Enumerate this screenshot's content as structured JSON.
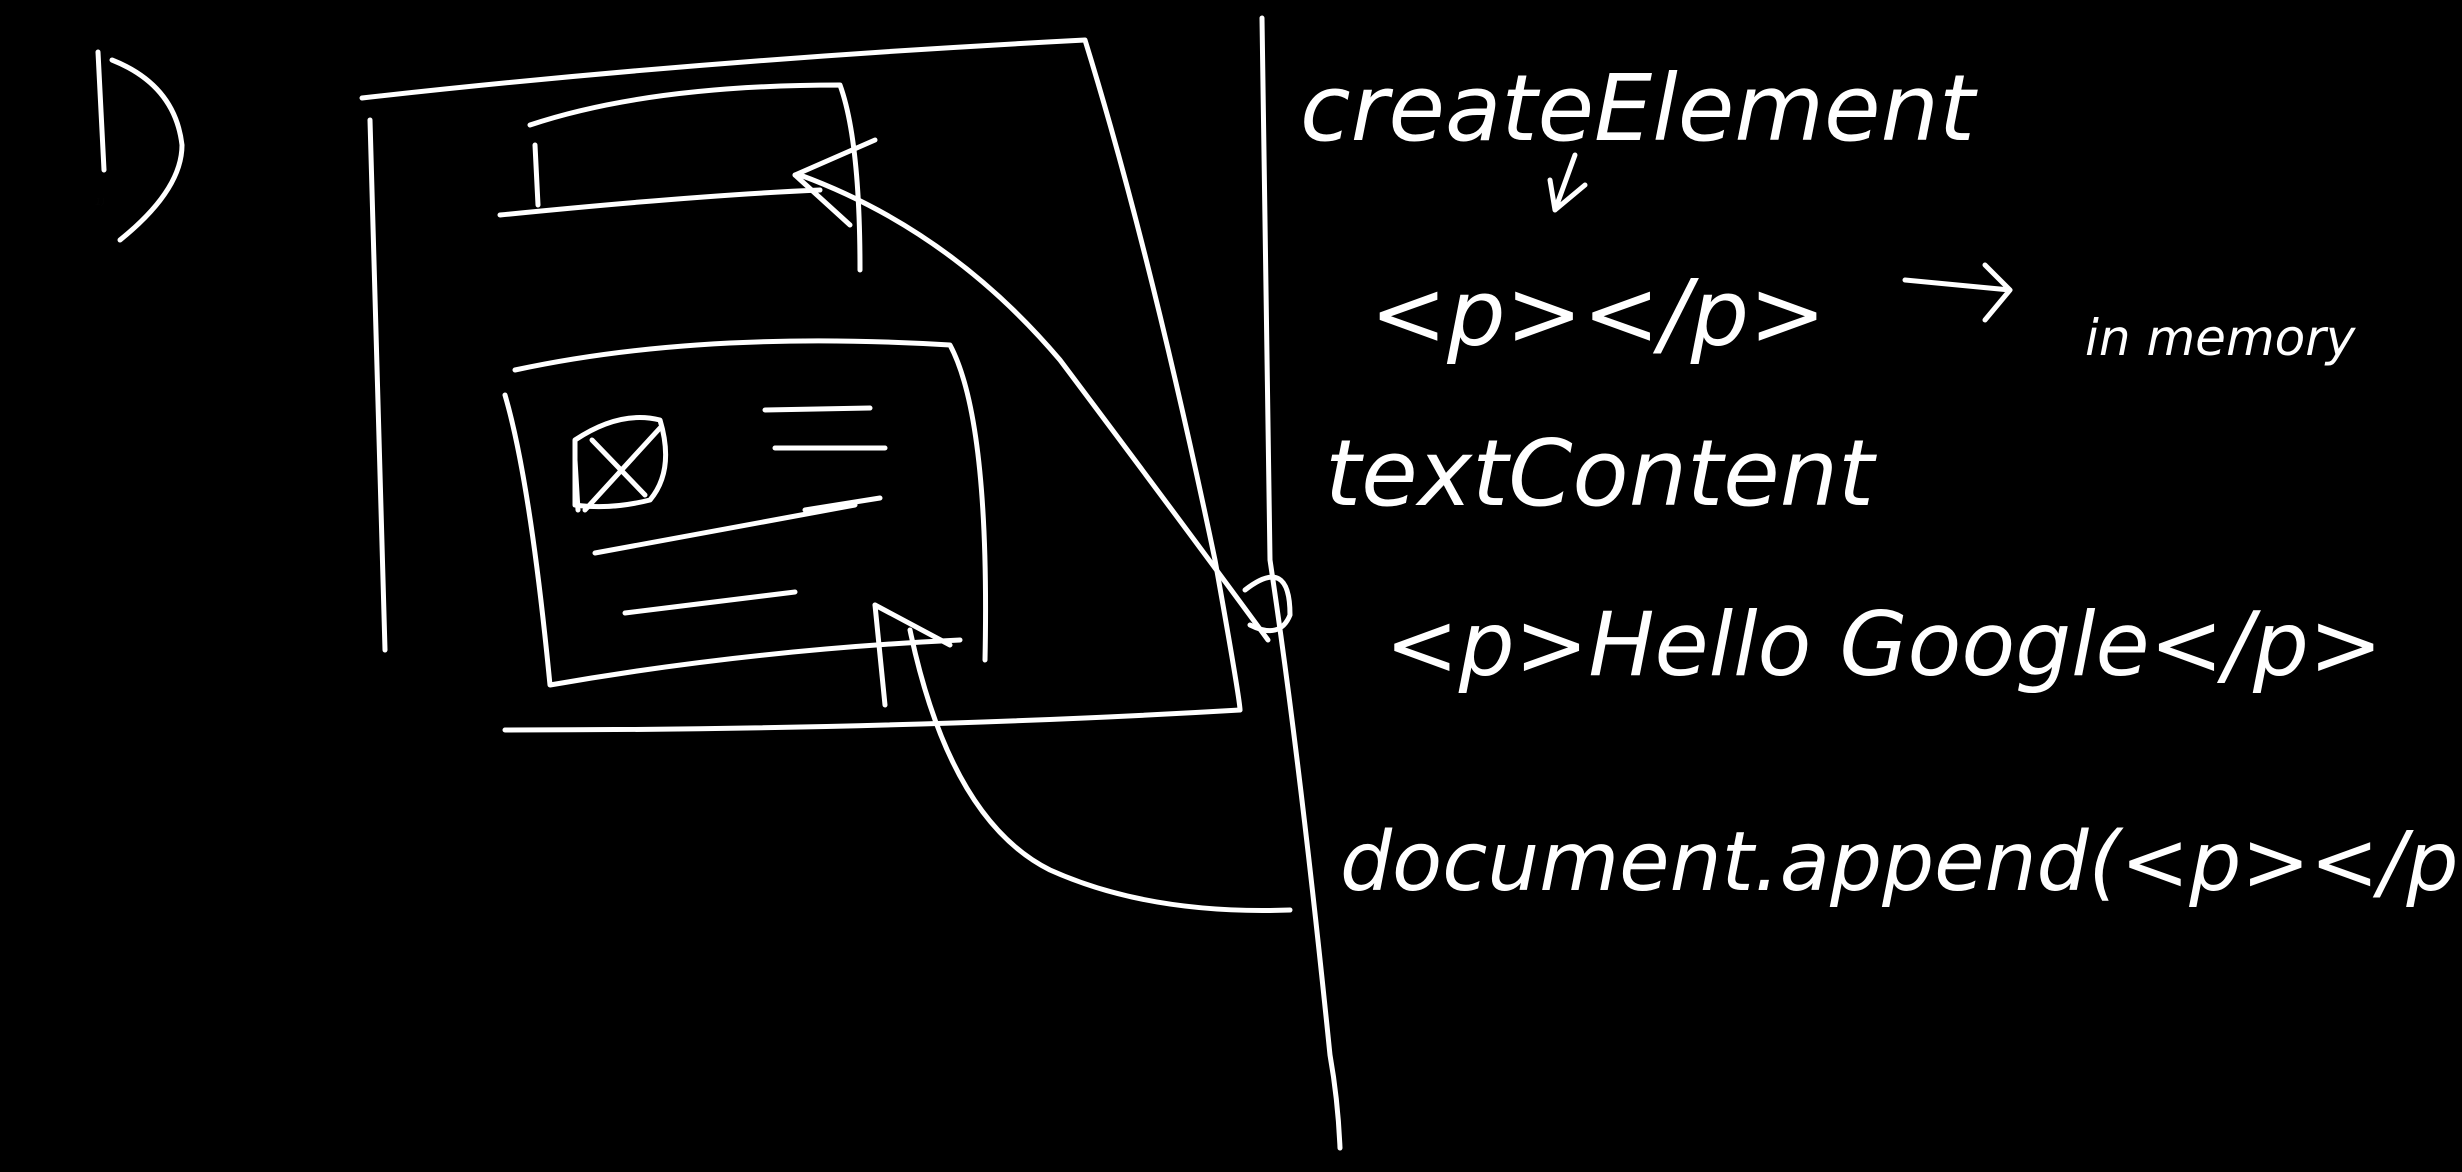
{
  "background_color": "#000000",
  "ink_color": "#ffffff",
  "step_label": "1)",
  "notes": [
    "createElement",
    "<p></p>",
    "in memory",
    "textContent",
    "<p>Hello Google</p>",
    "document.append(<p></p>)"
  ]
}
